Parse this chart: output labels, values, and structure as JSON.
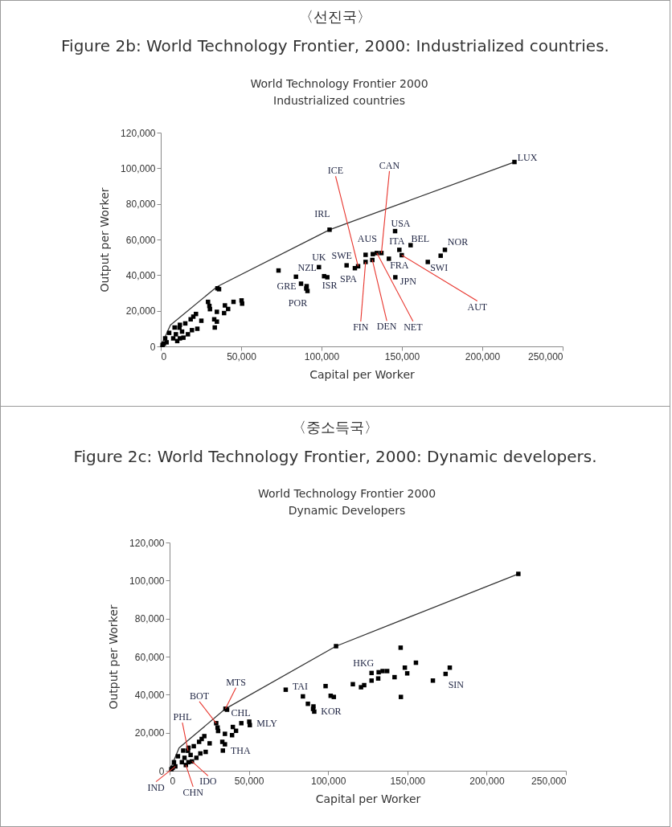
{
  "chart_data": [
    {
      "type": "scatter",
      "title": "Figure 2b: World Technology Frontier, 2000: Industrialized countries.",
      "subtitle": "World Technology Frontier 2000\nIndustrialized countries",
      "xlabel": "Capital per Worker",
      "ylabel": "Output per Worker",
      "xlim": [
        0,
        250000
      ],
      "ylim": [
        0,
        120000
      ],
      "xticks": [
        {
          "value": 0,
          "label": "0"
        },
        {
          "value": 50000,
          "label": "50,000"
        },
        {
          "value": 100000,
          "label": "100,000"
        },
        {
          "value": 150000,
          "label": "150,000"
        },
        {
          "value": 200000,
          "label": "200,000"
        },
        {
          "value": 250000,
          "label": "250,000"
        }
      ],
      "yticks": [
        {
          "value": 0,
          "label": "0"
        },
        {
          "value": 20000,
          "label": "20,000"
        },
        {
          "value": 40000,
          "label": "40,000"
        },
        {
          "value": 60000,
          "label": "60,000"
        },
        {
          "value": 80000,
          "label": "80,000"
        },
        {
          "value": 100000,
          "label": "100,000"
        },
        {
          "value": 120000,
          "label": "120,000"
        }
      ],
      "annotations": [
        "〈선진국〉",
        {
          "text": "LUX",
          "x": 220000,
          "y": 103500
        },
        {
          "text": "IRL",
          "x": 105000,
          "y": 65500
        },
        {
          "text": "USA",
          "x": 145750,
          "y": 64700
        },
        {
          "text": "BEL",
          "x": 155400,
          "y": 56800
        },
        {
          "text": "ITA",
          "x": 148400,
          "y": 54200
        },
        {
          "text": "NOR",
          "x": 176750,
          "y": 54200
        },
        {
          "text": "SWI",
          "x": 166100,
          "y": 47400
        },
        {
          "text": "FRA",
          "x": 141900,
          "y": 49200
        },
        {
          "text": "JPN",
          "x": 145900,
          "y": 38800
        },
        {
          "text": "AUS",
          "x": 127400,
          "y": 51400
        },
        {
          "text": "SWE",
          "x": 115600,
          "y": 45500
        },
        {
          "text": "SPA",
          "x": 120750,
          "y": 43900
        },
        {
          "text": "UK",
          "x": 98400,
          "y": 44500
        },
        {
          "text": "NZL",
          "x": 84100,
          "y": 39100
        },
        {
          "text": "ISR",
          "x": 101600,
          "y": 39400
        },
        {
          "text": "GRE",
          "x": 87250,
          "y": 35150
        },
        {
          "text": "POR",
          "x": 91250,
          "y": 31100
        },
        {
          "text": "CAN",
          "x": 137250,
          "y": 52400
        },
        {
          "text": "ICE",
          "x": 122750,
          "y": 45000
        },
        {
          "text": "FIN",
          "x": 127400,
          "y": 47400
        },
        {
          "text": "DEN",
          "x": 131600,
          "y": 48500
        },
        {
          "text": "NET",
          "x": 134400,
          "y": 52400
        },
        {
          "text": "AUT",
          "x": 149900,
          "y": 51200
        }
      ],
      "series": [
        {
          "type": "line",
          "color": "#333333",
          "x": [
            0,
            6000,
            35000,
            105000,
            220000
          ],
          "values": [
            0,
            12000,
            33500,
            65500,
            103500
          ]
        },
        {
          "marker": "square",
          "color": "#000000",
          "x": [
            220000,
            105000,
            145750,
            155400,
            148400,
            176750,
            174100,
            166100,
            149900,
            127400,
            127400,
            131900,
            134400,
            137250,
            131600,
            141900,
            145900,
            115600,
            120750,
            122750,
            98400,
            73250,
            84100,
            101600,
            103600,
            87250,
            90750,
            91250,
            90500,
            35250,
            36250,
            29400,
            30250,
            30600,
            34900,
            39900,
            41900,
            45250,
            50250,
            50600,
            39400,
            33250,
            34900,
            33600,
            21900,
            20250,
            25250,
            22750,
            18600,
            15250,
            11900,
            13250,
            8600,
            9400,
            10250,
            5250,
            2750,
            3600,
            1100,
            1900,
            16900,
            19400,
            7750,
            11900,
            11600,
            14100
          ],
          "values": [
            103500,
            65500,
            64700,
            56800,
            54200,
            54200,
            50900,
            47400,
            51200,
            51400,
            47400,
            51800,
            52400,
            52400,
            48500,
            49200,
            38800,
            45500,
            43900,
            45000,
            44500,
            42600,
            39100,
            39400,
            38800,
            35200,
            33800,
            31100,
            32500,
            32600,
            32100,
            25000,
            22700,
            20900,
            19400,
            23000,
            21000,
            25000,
            25800,
            24000,
            18700,
            15200,
            13900,
            10600,
            18200,
            16700,
            14400,
            9900,
            15200,
            12900,
            12100,
            8300,
            10600,
            6800,
            3000,
            7600,
            4500,
            2300,
            800,
            1500,
            6800,
            9100,
            4500,
            4500,
            10500,
            4900
          ]
        }
      ]
    },
    {
      "type": "scatter",
      "title": "Figure 2c: World Technology Frontier, 2000: Dynamic developers.",
      "subtitle": "World Technology Frontier 2000\nDynamic Developers",
      "xlabel": "Capital per Worker",
      "ylabel": "Output per Worker",
      "xlim": [
        0,
        250000
      ],
      "ylim": [
        0,
        120000
      ],
      "xticks": [
        {
          "value": 0,
          "label": "0"
        },
        {
          "value": 50000,
          "label": "50,000"
        },
        {
          "value": 100000,
          "label": "100,000"
        },
        {
          "value": 150000,
          "label": "150,000"
        },
        {
          "value": 200000,
          "label": "200,000"
        },
        {
          "value": 250000,
          "label": "250,000"
        }
      ],
      "yticks": [
        {
          "value": 0,
          "label": "0"
        },
        {
          "value": 20000,
          "label": "20,000"
        },
        {
          "value": 40000,
          "label": "40,000"
        },
        {
          "value": 60000,
          "label": "60,000"
        },
        {
          "value": 80000,
          "label": "80,000"
        },
        {
          "value": 100000,
          "label": "100,000"
        },
        {
          "value": 120000,
          "label": "120,000"
        }
      ],
      "annotations": [
        "〈중소득국〉",
        {
          "text": "MTS",
          "x": 35250,
          "y": 32600
        },
        {
          "text": "BOT",
          "x": 29400,
          "y": 25000
        },
        {
          "text": "CHL",
          "x": 36250,
          "y": 32100
        },
        {
          "text": "MLY",
          "x": 50250,
          "y": 25800
        },
        {
          "text": "THA",
          "x": 33600,
          "y": 10600
        },
        {
          "text": "PHL",
          "x": 11600,
          "y": 10500
        },
        {
          "text": "IDO",
          "x": 14100,
          "y": 4900
        },
        {
          "text": "CHN",
          "x": 10250,
          "y": 3000
        },
        {
          "text": "IND",
          "x": 3600,
          "y": 2300
        },
        {
          "text": "TAI",
          "x": 73250,
          "y": 42600
        },
        {
          "text": "KOR",
          "x": 91250,
          "y": 31100
        },
        {
          "text": "HKG",
          "x": 127400,
          "y": 51400
        },
        {
          "text": "SIN",
          "x": 174100,
          "y": 50900
        }
      ],
      "series": [
        {
          "type": "line",
          "color": "#333333",
          "x": [
            0,
            6000,
            35250,
            105000,
            220000
          ],
          "values": [
            0,
            12000,
            32600,
            65500,
            103500
          ]
        },
        {
          "marker": "square",
          "color": "#000000",
          "x": [
            220000,
            105000,
            145750,
            155400,
            148400,
            176750,
            174100,
            166100,
            149900,
            127400,
            127400,
            131900,
            134400,
            137250,
            131600,
            141900,
            145900,
            115600,
            120750,
            122750,
            98400,
            73250,
            84100,
            101600,
            103600,
            87250,
            90750,
            91250,
            90500,
            35250,
            36250,
            29400,
            30250,
            30600,
            34900,
            39900,
            41900,
            45250,
            50250,
            50600,
            39400,
            33250,
            34900,
            33600,
            21900,
            20250,
            25250,
            22750,
            18600,
            15250,
            11900,
            13250,
            8600,
            9400,
            10250,
            5250,
            2750,
            3600,
            1100,
            1900,
            16900,
            19400,
            7750,
            11900,
            11600,
            14100
          ],
          "values": [
            103500,
            65500,
            64700,
            56800,
            54200,
            54200,
            50900,
            47400,
            51200,
            51400,
            47400,
            51800,
            52400,
            52400,
            48500,
            49200,
            38800,
            45500,
            43900,
            45000,
            44500,
            42600,
            39100,
            39400,
            38800,
            35200,
            33800,
            31100,
            32500,
            32600,
            32100,
            25000,
            22700,
            20900,
            19400,
            23000,
            21000,
            25000,
            25800,
            24000,
            18700,
            15200,
            13900,
            10600,
            18200,
            16700,
            14400,
            9900,
            15200,
            12900,
            12100,
            8300,
            10600,
            6800,
            3000,
            7600,
            4500,
            2300,
            800,
            1500,
            6800,
            9100,
            4500,
            4500,
            10500,
            4900
          ]
        }
      ]
    }
  ]
}
